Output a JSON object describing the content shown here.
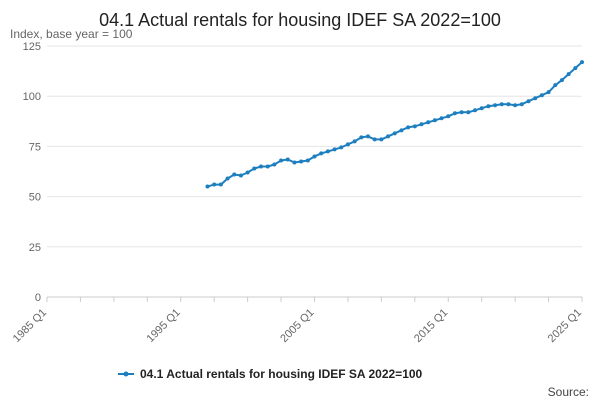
{
  "chart_data": {
    "type": "line",
    "title": "04.1 Actual rentals for housing IDEF SA 2022=100",
    "ylabel": "Index, base year = 100",
    "xlabel": "",
    "ylim": [
      0,
      125
    ],
    "y_ticks": [
      0,
      25,
      50,
      75,
      100,
      125
    ],
    "x_tick_labels": [
      "1985 Q1",
      "1995 Q1",
      "2005 Q1",
      "2015 Q1",
      "2025 Q1"
    ],
    "x_range": [
      "1985 Q1",
      "2025 Q1"
    ],
    "grid": true,
    "legend_position": "bottom",
    "source_label": "Source:",
    "series": [
      {
        "name": "04.1 Actual rentals for housing IDEF SA 2022=100",
        "color": "#1d7fbf",
        "points": [
          [
            "1997 Q1",
            55
          ],
          [
            "1997 Q3",
            56
          ],
          [
            "1998 Q1",
            56
          ],
          [
            "1998 Q3",
            59
          ],
          [
            "1999 Q1",
            61
          ],
          [
            "1999 Q3",
            60.5
          ],
          [
            "2000 Q1",
            62
          ],
          [
            "2000 Q3",
            64
          ],
          [
            "2001 Q1",
            65
          ],
          [
            "2001 Q3",
            65
          ],
          [
            "2002 Q1",
            66
          ],
          [
            "2002 Q3",
            68
          ],
          [
            "2003 Q1",
            68.5
          ],
          [
            "2003 Q3",
            67
          ],
          [
            "2004 Q1",
            67.5
          ],
          [
            "2004 Q3",
            68
          ],
          [
            "2005 Q1",
            70
          ],
          [
            "2005 Q3",
            71.5
          ],
          [
            "2006 Q1",
            72.5
          ],
          [
            "2006 Q3",
            73.5
          ],
          [
            "2007 Q1",
            74.5
          ],
          [
            "2007 Q3",
            76
          ],
          [
            "2008 Q1",
            77.5
          ],
          [
            "2008 Q3",
            79.5
          ],
          [
            "2009 Q1",
            80
          ],
          [
            "2009 Q3",
            78.5
          ],
          [
            "2010 Q1",
            78.5
          ],
          [
            "2010 Q3",
            80
          ],
          [
            "2011 Q1",
            81.5
          ],
          [
            "2011 Q3",
            83
          ],
          [
            "2012 Q1",
            84.5
          ],
          [
            "2012 Q3",
            85
          ],
          [
            "2013 Q1",
            86
          ],
          [
            "2013 Q3",
            87
          ],
          [
            "2014 Q1",
            88
          ],
          [
            "2014 Q3",
            89
          ],
          [
            "2015 Q1",
            90
          ],
          [
            "2015 Q3",
            91.5
          ],
          [
            "2016 Q1",
            92
          ],
          [
            "2016 Q3",
            92
          ],
          [
            "2017 Q1",
            93
          ],
          [
            "2017 Q3",
            94
          ],
          [
            "2018 Q1",
            95
          ],
          [
            "2018 Q3",
            95.5
          ],
          [
            "2019 Q1",
            96
          ],
          [
            "2019 Q3",
            96
          ],
          [
            "2020 Q1",
            95.5
          ],
          [
            "2020 Q3",
            96
          ],
          [
            "2021 Q1",
            97.5
          ],
          [
            "2021 Q3",
            99
          ],
          [
            "2022 Q1",
            100.5
          ],
          [
            "2022 Q3",
            102
          ],
          [
            "2023 Q1",
            105.5
          ],
          [
            "2023 Q3",
            108
          ],
          [
            "2024 Q1",
            111
          ],
          [
            "2024 Q3",
            114
          ],
          [
            "2025 Q1",
            117
          ]
        ]
      }
    ]
  }
}
